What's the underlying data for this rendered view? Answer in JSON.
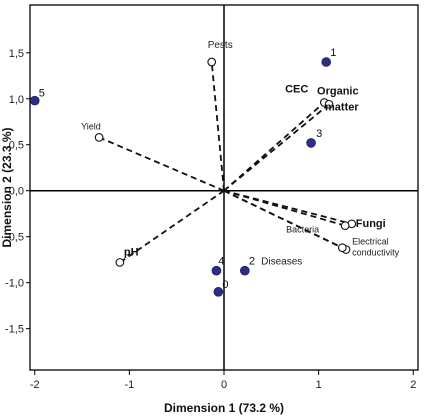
{
  "chart_data": {
    "type": "scatter",
    "subtype": "biplot",
    "xlabel": "Dimension 1 (73.2 %)",
    "ylabel": "Dimension 2 (23.3 %)",
    "xlim": [
      -2.05,
      2.05
    ],
    "ylim": [
      -1.95,
      2.02
    ],
    "x_ticks": [
      -2,
      -1,
      0,
      1,
      2
    ],
    "x_tick_labels": [
      "-2",
      "-1",
      "0",
      "1",
      "2"
    ],
    "y_ticks": [
      1.5,
      1.0,
      0.5,
      0.0,
      -0.5,
      -1.0,
      -1.5
    ],
    "y_tick_labels": [
      "1,5",
      "1,0",
      "0,5",
      "0,0",
      "-0,5",
      "-1,0",
      "-1,5"
    ],
    "grid": false,
    "reference_lines": {
      "x": 0,
      "y": 0
    },
    "marker_colors": {
      "observations": "#2e2e86",
      "variables": "#ffffff"
    },
    "observations": [
      {
        "label": "1",
        "x": 1.08,
        "y": 1.4
      },
      {
        "label": "3",
        "x": 0.92,
        "y": 0.52
      },
      {
        "label": "5",
        "x": -2.0,
        "y": 0.98
      },
      {
        "label": "2",
        "x": 0.22,
        "y": -0.87
      },
      {
        "label": "4",
        "x": -0.08,
        "y": -0.87
      },
      {
        "label": "0",
        "x": -0.06,
        "y": -1.1
      }
    ],
    "variables": [
      {
        "label": "Pests",
        "x": -0.13,
        "y": 1.4
      },
      {
        "label": "CEC",
        "x": 1.06,
        "y": 0.96
      },
      {
        "label": "Organic",
        "x": 1.11,
        "y": 0.94
      },
      {
        "label": "matter",
        "x": 1.11,
        "y": 0.94
      },
      {
        "label": "Yield",
        "x": -1.32,
        "y": 0.58
      },
      {
        "label": "Fungi",
        "x": 1.35,
        "y": -0.36
      },
      {
        "label": "Bacteria",
        "x": 1.28,
        "y": -0.38
      },
      {
        "label": "Electrical",
        "x": 1.29,
        "y": -0.64
      },
      {
        "label": "conductivity",
        "x": 1.29,
        "y": -0.64
      },
      {
        "label": "Diseases",
        "x": 1.25,
        "y": -0.62
      },
      {
        "label": "pH",
        "x": -1.1,
        "y": -0.78
      }
    ]
  }
}
